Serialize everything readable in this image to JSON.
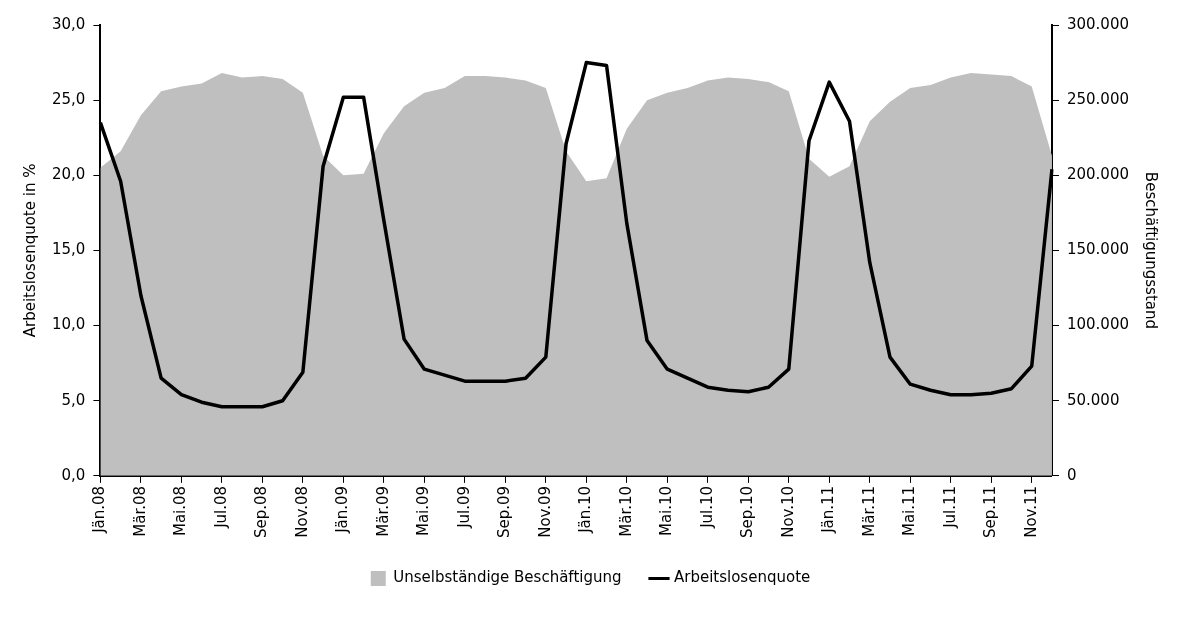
{
  "chart_data": {
    "type": "area",
    "categories": [
      "Jän.08",
      null,
      "Mär.08",
      null,
      "Mai.08",
      null,
      "Jul.08",
      null,
      "Sep.08",
      null,
      "Nov.08",
      null,
      "Jän.09",
      null,
      "Mär.09",
      null,
      "Mai.09",
      null,
      "Jul.09",
      null,
      "Sep.09",
      null,
      "Nov.09",
      null,
      "Jän.10",
      null,
      "Mär.10",
      null,
      "Mai.10",
      null,
      "Jul.10",
      null,
      "Sep.10",
      null,
      "Nov.10",
      null,
      "Jän.11",
      null,
      "Mär.11",
      null,
      "Mai.11",
      null,
      "Jul.11",
      null,
      "Sep.11",
      null,
      "Nov.11",
      null
    ],
    "ylabel": "Arbeitslosenquote in %",
    "y2label": "Beschäftigungsstand",
    "series": [
      {
        "name": "Unselbständige Beschäftigung",
        "axis": "y2",
        "color": "#bfbfbf",
        "values": [
          205000,
          216000,
          240000,
          256000,
          259000,
          261000,
          268000,
          265000,
          266000,
          264000,
          255000,
          213000,
          200000,
          201000,
          228000,
          246000,
          255000,
          258000,
          266000,
          266000,
          265000,
          263000,
          258000,
          216000,
          196000,
          198000,
          231000,
          250000,
          255000,
          258000,
          263000,
          265000,
          264000,
          262000,
          256000,
          211000,
          199000,
          206000,
          236000,
          249000,
          258000,
          260000,
          265000,
          268000,
          267000,
          266000,
          259000,
          213000
        ]
      },
      {
        "name": "Arbeitslosenquote",
        "type": "line",
        "axis": "y",
        "color": "#000000",
        "values": [
          23.5,
          19.6,
          12.0,
          6.5,
          5.4,
          4.9,
          4.6,
          4.6,
          4.6,
          5.0,
          6.9,
          20.6,
          25.2,
          25.2,
          17.0,
          9.1,
          7.1,
          6.7,
          6.3,
          6.3,
          6.3,
          6.5,
          7.9,
          22.1,
          27.5,
          27.3,
          16.8,
          9.0,
          7.1,
          6.5,
          5.9,
          5.7,
          5.6,
          5.9,
          7.1,
          22.3,
          26.2,
          23.6,
          14.2,
          7.9,
          6.1,
          5.7,
          5.4,
          5.4,
          5.5,
          5.8,
          7.3,
          20.4
        ]
      }
    ],
    "ylim": [
      0,
      30
    ],
    "yticks": [
      {
        "value": 0,
        "label": "0,0"
      },
      {
        "value": 5,
        "label": "5,0"
      },
      {
        "value": 10,
        "label": "10,0"
      },
      {
        "value": 15,
        "label": "15,0"
      },
      {
        "value": 20,
        "label": "20,0"
      },
      {
        "value": 25,
        "label": "25,0"
      },
      {
        "value": 30,
        "label": "30,0"
      }
    ],
    "y2lim": [
      0,
      300000
    ],
    "y2ticks": [
      0,
      {
        "value": 50000,
        "label": "50.000"
      },
      {
        "value": 100000,
        "label": "100.000"
      },
      {
        "value": 150000,
        "label": "150.000"
      },
      {
        "value": 200000,
        "label": "200.000"
      },
      {
        "value": 250000,
        "label": "250.000"
      },
      {
        "value": 300000,
        "label": "300.000"
      }
    ],
    "legend": "bottom",
    "grid": false,
    "line_style": "solid",
    "marker": "none"
  }
}
